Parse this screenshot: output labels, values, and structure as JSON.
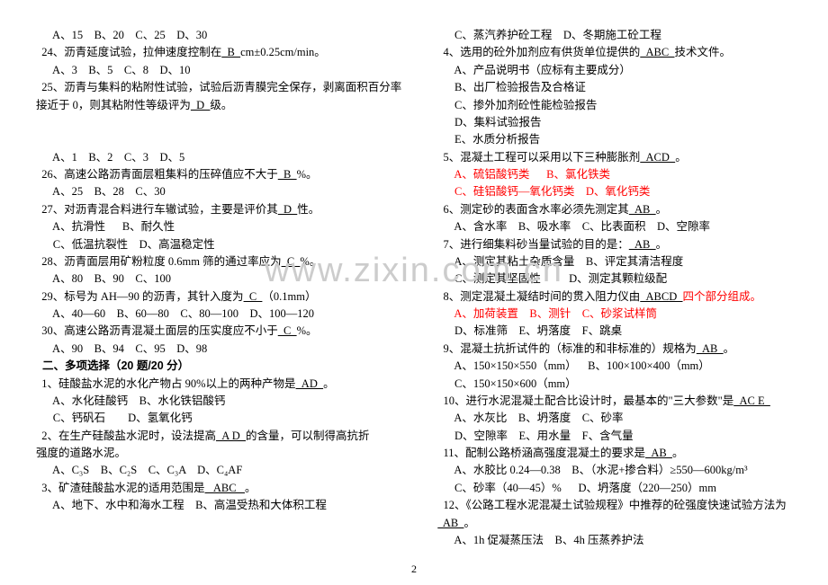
{
  "watermark": "www.zixin.com.cn",
  "pagenum": "2",
  "left": [
    {
      "t": "plain",
      "text": "      A、15    B、20    C、25    D、30"
    },
    {
      "t": "ans",
      "pre": "  24、沥青延度试验，拉伸速度控制在",
      "ans": "  B  ",
      "post": "cm±0.25cm/min。"
    },
    {
      "t": "plain",
      "text": "      A、3    B、5    C、8    D、10"
    },
    {
      "t": "plain",
      "text": "  25、沥青与集料的粘附性试验，试验后沥青膜完全保存，剥离面积百分率"
    },
    {
      "t": "ans",
      "pre": "接近于 0，则其粘附性等级评为",
      "ans": "  D  ",
      "post": "级。"
    },
    {
      "t": "plain",
      "text": ""
    },
    {
      "t": "plain",
      "text": ""
    },
    {
      "t": "plain",
      "text": "      A、1    B、2    C、3    D、5"
    },
    {
      "t": "ans",
      "pre": "  26、高速公路沥青面层粗集料的压碎值应不大于",
      "ans": "  B  ",
      "post": "%。"
    },
    {
      "t": "plain",
      "text": "      A、25    B、28    C、30"
    },
    {
      "t": "ans",
      "pre": "  27、对沥青混合料进行车辙试验，主要是评价其",
      "ans": "  D  ",
      "post": "性。"
    },
    {
      "t": "plain",
      "text": "      A、抗滑性      B、耐久性"
    },
    {
      "t": "plain",
      "text": "      C、低温抗裂性    D、高温稳定性"
    },
    {
      "t": "ans",
      "pre": "  28、沥青面层用矿粉粒度 0.6mm 筛的通过率应为",
      "ans": "  C  ",
      "post": "%。"
    },
    {
      "t": "plain",
      "text": "      A、80    B、90    C、100"
    },
    {
      "t": "ans",
      "pre": "  29、标号为 AH—90 的沥青，其针入度为",
      "ans": "  C  ",
      "post": "（0.1mm）"
    },
    {
      "t": "plain",
      "text": "      A、40—60    B、60—80    C、80—100    D、100—120"
    },
    {
      "t": "ans",
      "pre": "  30、高速公路沥青混凝土面层的压实度应不小于",
      "ans": "  C  ",
      "post": "%。"
    },
    {
      "t": "plain",
      "text": "      A、90    B、94    C、95    D、98"
    },
    {
      "t": "bold",
      "text": "  二、多项选择（20 题/20 分）"
    },
    {
      "t": "ans",
      "pre": "  1、硅酸盐水泥的水化产物占 90%以上的两种产物是",
      "ans": "  AD  ",
      "post": "。"
    },
    {
      "t": "plain",
      "text": "      A、水化硅酸钙    B、水化铁铝酸钙"
    },
    {
      "t": "plain",
      "text": "      C、钙矾石        D、氢氧化钙"
    },
    {
      "t": "ans",
      "pre": "  2、在生产硅酸盐水泥时，设法提高",
      "ans": "  A D  ",
      "post": "的含量，可以制得高抗折"
    },
    {
      "t": "plain",
      "text": "强度的道路水泥。"
    },
    {
      "t": "plain",
      "text": "      A、C₃S    B、C₂S    C、C₃A    D、C₄AF"
    },
    {
      "t": "ans",
      "pre": "  3、矿渣硅酸盐水泥的适用范围是",
      "ans": "   ABC   ",
      "post": "。"
    },
    {
      "t": "plain",
      "text": "      A、地下、水中和海水工程    B、高温受热和大体积工程"
    }
  ],
  "right": [
    {
      "t": "plain",
      "text": "      C、蒸汽养护砼工程    D、冬期施工砼工程"
    },
    {
      "t": "ans",
      "pre": "  4、选用的砼外加剂应有供货单位提供的",
      "ans": "  ABC  ",
      "post": "技术文件。"
    },
    {
      "t": "plain",
      "text": "      A、产品说明书（应标有主要成分）"
    },
    {
      "t": "plain",
      "text": "      B、出厂检验报告及合格证"
    },
    {
      "t": "plain",
      "text": "      C、掺外加剂砼性能检验报告"
    },
    {
      "t": "plain",
      "text": "      D、集料试验报告"
    },
    {
      "t": "plain",
      "text": "      E、水质分析报告"
    },
    {
      "t": "ans",
      "pre": "  5、混凝土工程可以采用以下三种膨胀剂",
      "ans": "  ACD  ",
      "post": "。"
    },
    {
      "t": "red",
      "text": "      A、硫铝酸钙类      B、氯化铁类"
    },
    {
      "t": "red",
      "text": "      C、硅铝酸钙—氧化钙类    D、氧化钙类"
    },
    {
      "t": "ans",
      "pre": "  6、测定砂的表面含水率必须先测定其",
      "ans": "  AB  ",
      "post": "。"
    },
    {
      "t": "plain",
      "text": "      A、含水率    B、吸水率    C、比表面积    D、空隙率"
    },
    {
      "t": "ans",
      "pre": "  7、进行细集料砂当量试验的目的是：",
      "ans": "  AB  ",
      "post": "。"
    },
    {
      "t": "plain",
      "text": "      A、测定其粘土杂质含量    B、评定其清洁程度"
    },
    {
      "t": "plain",
      "text": "      C、测定其坚固性          D、测定其颗粒级配"
    },
    {
      "t": "ansred",
      "pre": "  8、测定混凝土凝结时间的贯入阻力仪由",
      "ans": "  ABCD  ",
      "post": "四个部分组成。"
    },
    {
      "t": "red",
      "text": "      A、加荷装置    B、测针    C、砂浆试样筒"
    },
    {
      "t": "plain",
      "text": "      D、标准筛    E、坍落度    F、跳桌"
    },
    {
      "t": "ans",
      "pre": "  9、混凝土抗折试件的（标准的和非标准的）规格为",
      "ans": "  AB  ",
      "post": "。"
    },
    {
      "t": "plain",
      "text": "      A、150×150×550（mm）    B、100×100×400（mm）"
    },
    {
      "t": "plain",
      "text": "      C、150×150×600（mm）"
    },
    {
      "t": "ans",
      "pre": "  10、进行水泥混凝土配合比设计时，最基本的\"三大参数\"是",
      "ans": "  AC E  ",
      "post": ""
    },
    {
      "t": "plain",
      "text": "      A、水灰比    B、坍落度    C、砂率"
    },
    {
      "t": "plain",
      "text": "      D、空隙率    E、用水量    F、含气量"
    },
    {
      "t": "ans",
      "pre": "  11、配制公路桥涵高强度混凝土的要求是",
      "ans": "  AB  ",
      "post": "。"
    },
    {
      "t": "plain",
      "text": "      A、水胶比 0.24—0.38    B、（水泥+掺合料）≥550—600kg/m³"
    },
    {
      "t": "plain",
      "text": "      C、砂率（40—45）%      D、坍落度（220—250）mm"
    },
    {
      "t": "plain",
      "text": "  12、《公路工程水泥混凝土试验规程》中推荐的砼强度快速试验方法为"
    },
    {
      "t": "ans",
      "pre": "",
      "ans": "  AB  ",
      "post": "。"
    },
    {
      "t": "plain",
      "text": "      A、1h 促凝蒸压法    B、4h 压蒸养护法"
    }
  ]
}
